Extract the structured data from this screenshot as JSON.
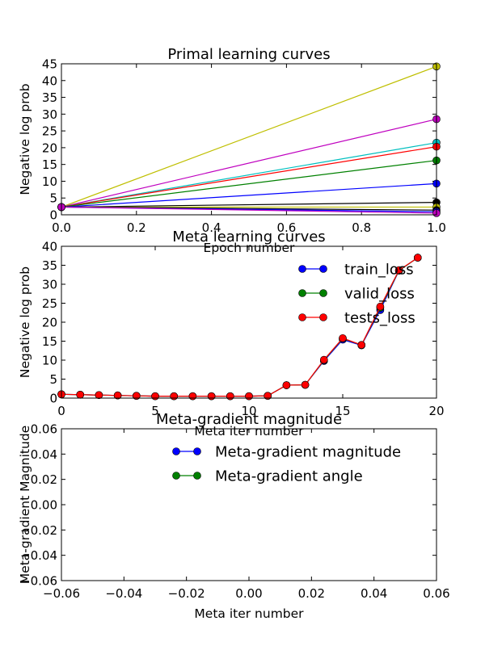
{
  "chart_data": [
    {
      "type": "line",
      "title": "Primal learning curves",
      "xlabel": "Epoch number",
      "ylabel": "Negative log prob",
      "xlim": [
        0,
        1
      ],
      "ylim": [
        0,
        45
      ],
      "xticks": [
        "0.0",
        "0.2",
        "0.4",
        "0.6",
        "0.8",
        "1.0"
      ],
      "yticks": [
        "0",
        "5",
        "10",
        "15",
        "20",
        "25",
        "30",
        "35",
        "40",
        "45"
      ],
      "grid": false,
      "series": [
        {
          "color": "#bfbf00",
          "x": [
            0,
            1
          ],
          "values": [
            2.3,
            44.2
          ]
        },
        {
          "color": "#bf00bf",
          "x": [
            0,
            1
          ],
          "values": [
            2.3,
            28.5
          ]
        },
        {
          "color": "#00bfbf",
          "x": [
            0,
            1
          ],
          "values": [
            2.3,
            21.5
          ]
        },
        {
          "color": "#ff0000",
          "x": [
            0,
            1
          ],
          "values": [
            2.3,
            20.3
          ]
        },
        {
          "color": "#008000",
          "x": [
            0,
            1
          ],
          "values": [
            2.3,
            16.2
          ]
        },
        {
          "color": "#0000ff",
          "x": [
            0,
            1
          ],
          "values": [
            2.3,
            9.3
          ]
        },
        {
          "color": "#000000",
          "x": [
            0,
            1
          ],
          "values": [
            2.3,
            3.7
          ]
        },
        {
          "color": "#bfbf00",
          "x": [
            0,
            1
          ],
          "values": [
            2.3,
            2.3
          ]
        },
        {
          "color": "#000000",
          "x": [
            0,
            1
          ],
          "values": [
            2.3,
            1.4
          ]
        },
        {
          "color": "#0000ff",
          "x": [
            0,
            1
          ],
          "values": [
            2.3,
            0.9
          ]
        },
        {
          "color": "#bf00bf",
          "x": [
            0,
            1
          ],
          "values": [
            2.3,
            0.5
          ]
        }
      ]
    },
    {
      "type": "line",
      "title": "Meta learning curves",
      "xlabel": "Meta iter number",
      "ylabel": "Negative log prob",
      "xlim": [
        0,
        20
      ],
      "ylim": [
        0,
        40
      ],
      "xticks": [
        "0",
        "5",
        "10",
        "15",
        "20"
      ],
      "yticks": [
        "0",
        "5",
        "10",
        "15",
        "20",
        "25",
        "30",
        "35",
        "40"
      ],
      "grid": false,
      "legend": "top-right",
      "x": [
        0,
        1,
        2,
        3,
        4,
        5,
        6,
        7,
        8,
        9,
        10,
        11,
        12,
        13,
        14,
        15,
        16,
        17,
        18,
        19
      ],
      "series": [
        {
          "name": "train_loss",
          "color": "#0000ff",
          "values": [
            1.0,
            0.9,
            0.8,
            0.7,
            0.6,
            0.5,
            0.5,
            0.5,
            0.5,
            0.5,
            0.5,
            0.6,
            3.4,
            3.5,
            9.8,
            15.4,
            13.9,
            23.2,
            33.6,
            37.0
          ]
        },
        {
          "name": "valid_loss",
          "color": "#008000",
          "values": [
            1.0,
            0.9,
            0.8,
            0.7,
            0.6,
            0.5,
            0.5,
            0.5,
            0.5,
            0.5,
            0.5,
            0.6,
            3.4,
            3.5,
            10.0,
            15.7,
            14.0,
            23.8,
            33.6,
            37.0
          ]
        },
        {
          "name": "tests_loss",
          "color": "#ff0000",
          "values": [
            1.0,
            0.9,
            0.8,
            0.7,
            0.6,
            0.5,
            0.5,
            0.5,
            0.5,
            0.5,
            0.5,
            0.6,
            3.4,
            3.5,
            10.1,
            15.8,
            14.0,
            24.1,
            33.7,
            37.0
          ]
        }
      ]
    },
    {
      "type": "line",
      "title": "Meta-gradient magnitude",
      "xlabel": "Meta iter number",
      "ylabel": "Meta-gradient Magnitude",
      "xlim": [
        -0.06,
        0.06
      ],
      "ylim": [
        -0.06,
        0.06
      ],
      "xticks": [
        "−0.06",
        "−0.04",
        "−0.02",
        "0.00",
        "0.02",
        "0.04",
        "0.06"
      ],
      "yticks": [
        "−0.06",
        "−0.04",
        "−0.02",
        "0.00",
        "0.02",
        "0.04",
        "0.06"
      ],
      "grid": false,
      "legend": "top-right",
      "series": [
        {
          "name": "Meta-gradient magnitude",
          "color": "#0000ff",
          "values": []
        },
        {
          "name": "Meta-gradient angle",
          "color": "#008000",
          "values": []
        }
      ]
    }
  ]
}
